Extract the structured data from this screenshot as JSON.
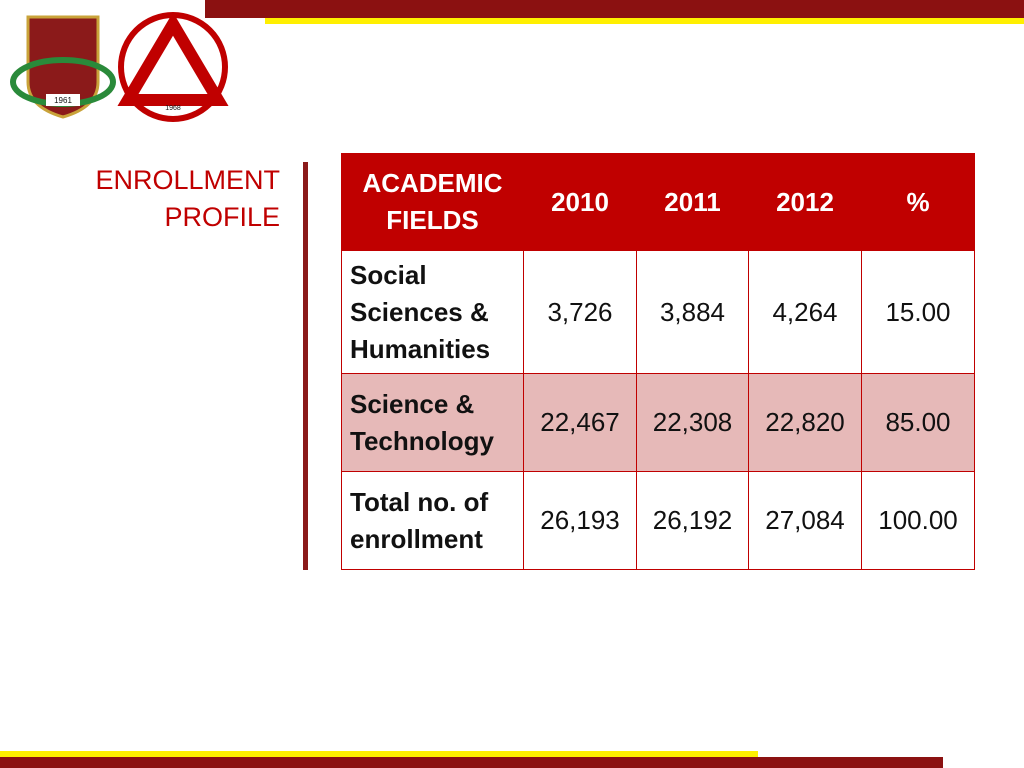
{
  "header": {
    "title_lines": [
      "ENROLLMENT",
      "PROFILE"
    ],
    "logo_years": [
      "1961",
      "1968"
    ]
  },
  "table": {
    "columns": [
      "ACADEMIC FIELDS",
      "2010",
      "2011",
      "2012",
      "%"
    ],
    "rows": [
      [
        "Social Sciences & Humanities",
        "3,726",
        "3,884",
        "4,264",
        "15.00"
      ],
      [
        "Science & Technology",
        "22,467",
        "22,308",
        "22,820",
        "85.00"
      ],
      [
        "Total no. of enrollment",
        "26,193",
        "26,192",
        "27,084",
        "100.00"
      ]
    ]
  }
}
